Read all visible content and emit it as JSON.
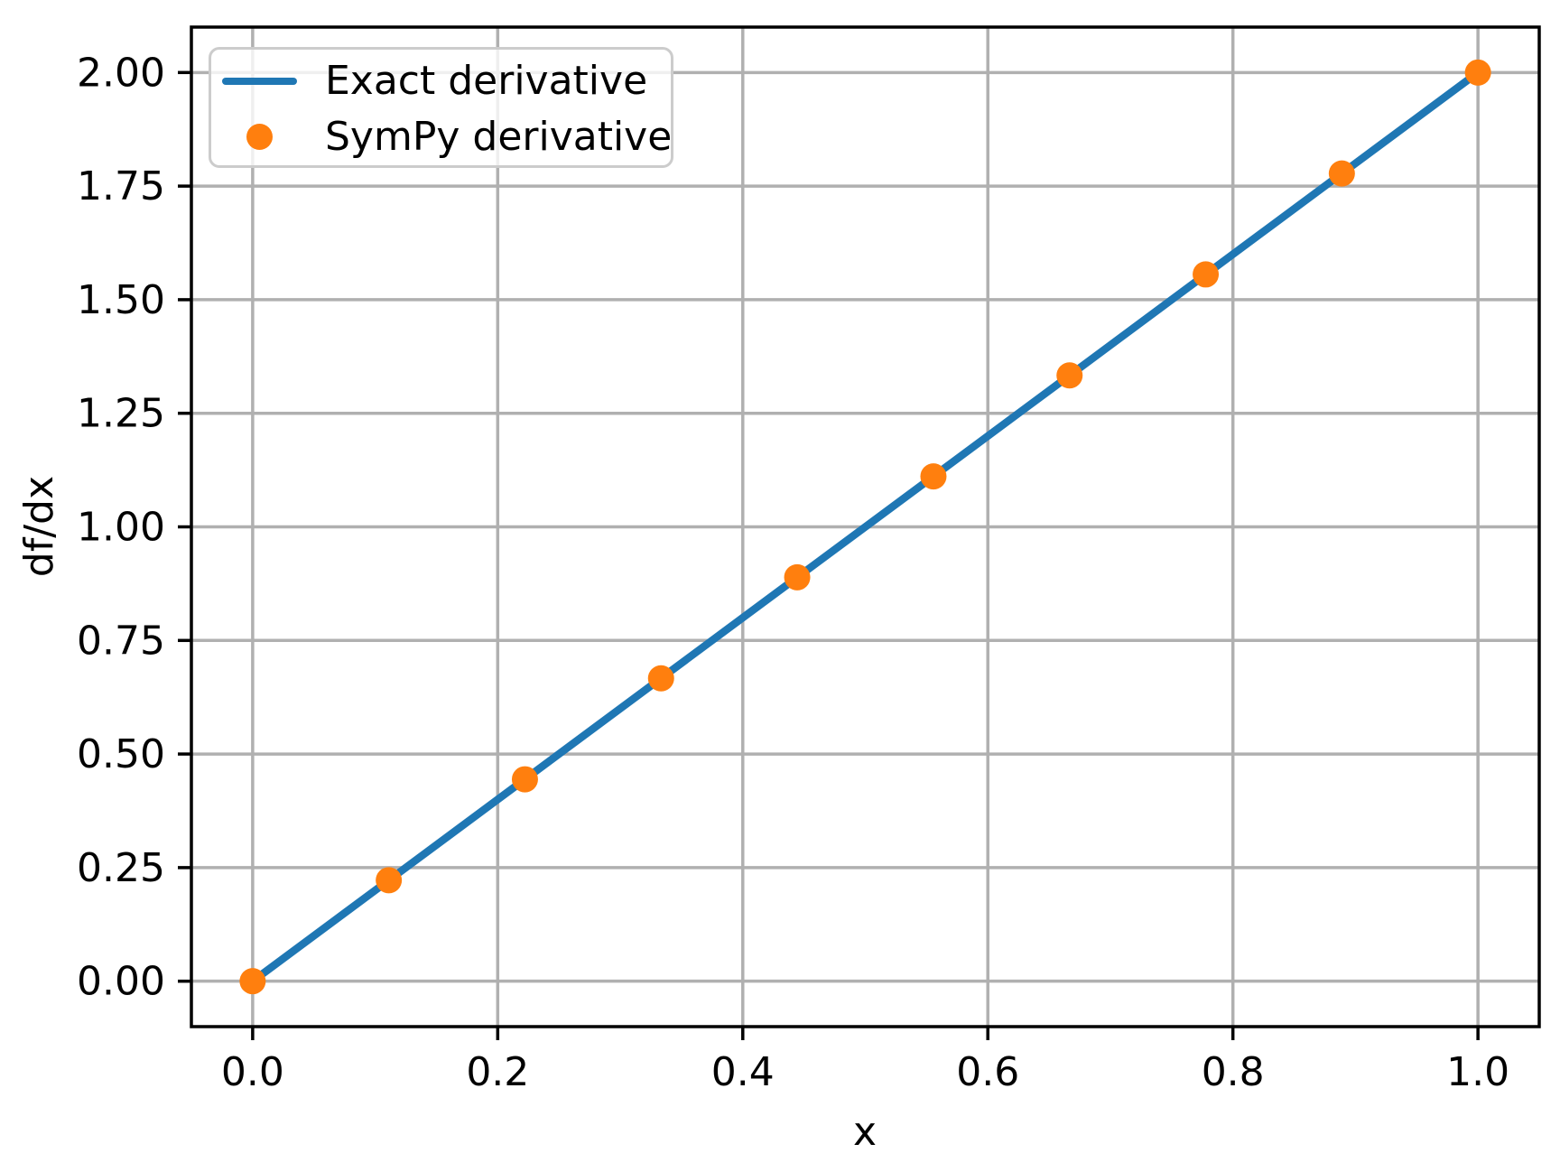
{
  "figure": {
    "background": "#ffffff",
    "text_color": "#000000"
  },
  "chart_data": {
    "type": "line+scatter",
    "title": "",
    "xlabel": "x",
    "ylabel": "df/dx",
    "xlim": [
      -0.05,
      1.05
    ],
    "ylim": [
      -0.1,
      2.1
    ],
    "grid": true,
    "grid_color": "#b0b0b0",
    "spine_color": "#000000",
    "x_ticks": [
      0.0,
      0.2,
      0.4,
      0.6,
      0.8,
      1.0
    ],
    "x_tick_labels": [
      "0.0",
      "0.2",
      "0.4",
      "0.6",
      "0.8",
      "1.0"
    ],
    "y_ticks": [
      0.0,
      0.25,
      0.5,
      0.75,
      1.0,
      1.25,
      1.5,
      1.75,
      2.0
    ],
    "y_tick_labels": [
      "0.00",
      "0.25",
      "0.50",
      "0.75",
      "1.00",
      "1.25",
      "1.50",
      "1.75",
      "2.00"
    ],
    "legend": {
      "position": "upper left",
      "items": [
        {
          "label": "Exact derivative",
          "handle": "line",
          "color": "#1f77b4"
        },
        {
          "label": "SymPy derivative",
          "handle": "marker",
          "color": "#ff7f0e"
        }
      ]
    },
    "series": [
      {
        "name": "Exact derivative",
        "type": "line",
        "color": "#1f77b4",
        "x": [
          0.0,
          0.1111,
          0.2222,
          0.3333,
          0.4444,
          0.5556,
          0.6667,
          0.7778,
          0.8889,
          1.0
        ],
        "y": [
          0.0,
          0.2222,
          0.4444,
          0.6667,
          0.8889,
          1.1111,
          1.3333,
          1.5556,
          1.7778,
          2.0
        ]
      },
      {
        "name": "SymPy derivative",
        "type": "scatter",
        "color": "#ff7f0e",
        "x": [
          0.0,
          0.1111,
          0.2222,
          0.3333,
          0.4444,
          0.5556,
          0.6667,
          0.7778,
          0.8889,
          1.0
        ],
        "y": [
          0.0,
          0.2222,
          0.4444,
          0.6667,
          0.8889,
          1.1111,
          1.3333,
          1.5556,
          1.7778,
          2.0
        ]
      }
    ]
  }
}
